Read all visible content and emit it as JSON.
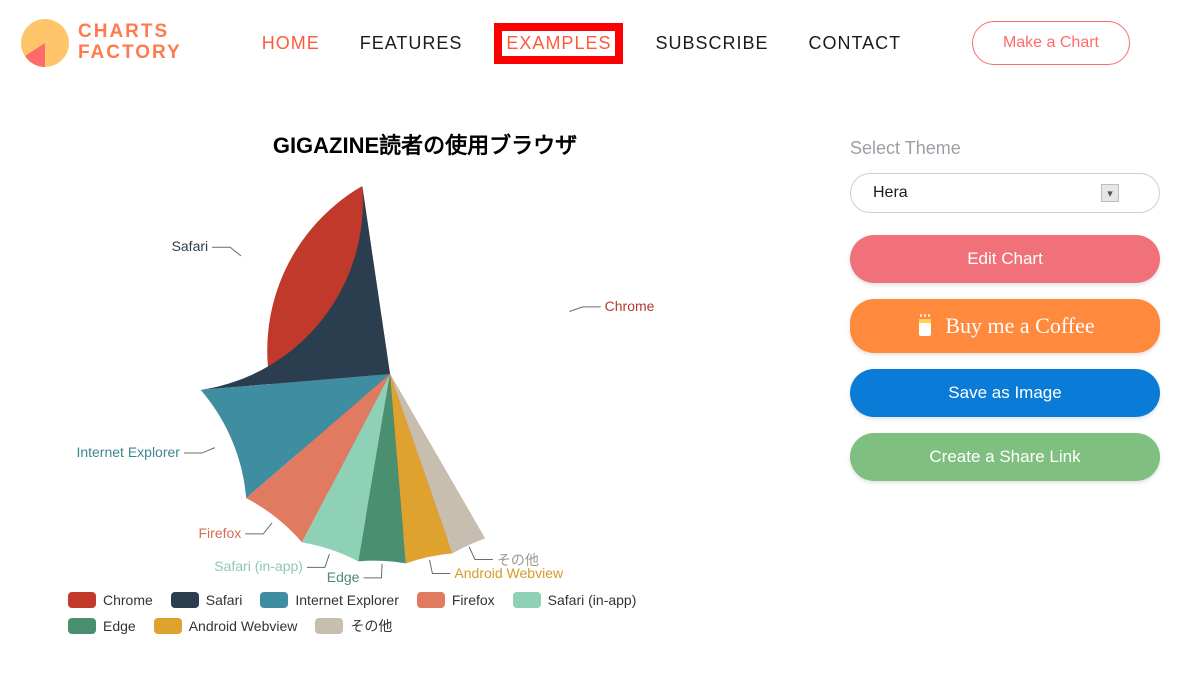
{
  "brand": {
    "line1": "CHARTS",
    "line2": "FACTORY",
    "mark_colors": {
      "disc": "#ffc56b",
      "wedge": "#ff6b6b"
    }
  },
  "nav": {
    "items": [
      {
        "label": "HOME",
        "state": "active"
      },
      {
        "label": "FEATURES",
        "state": "normal"
      },
      {
        "label": "EXAMPLES",
        "state": "highlighted"
      },
      {
        "label": "SUBSCRIBE",
        "state": "normal"
      },
      {
        "label": "CONTACT",
        "state": "normal"
      }
    ],
    "cta_label": "Make a Chart",
    "highlight_color": "#ff0000"
  },
  "chart": {
    "type": "pie",
    "title": "GIGAZINE読者の使用ブラウザ",
    "title_fontsize": 22,
    "background_color": "#ffffff",
    "radius": 190,
    "start_angle_deg": 60,
    "slices": [
      {
        "label": "Chrome",
        "value": 44,
        "color": "#c0392b",
        "label_color": "#b5392d"
      },
      {
        "label": "Safari",
        "value": 24,
        "color": "#2b3e50",
        "label_color": "#2b3e50"
      },
      {
        "label": "Internet Explorer",
        "value": 10,
        "color": "#3e8da0",
        "label_color": "#3e8693"
      },
      {
        "label": "Firefox",
        "value": 6,
        "color": "#e07b61",
        "label_color": "#d66f55"
      },
      {
        "label": "Safari (in-app)",
        "value": 5,
        "color": "#8fd1b7",
        "label_color": "#8fc9b1"
      },
      {
        "label": "Edge",
        "value": 4,
        "color": "#4a8f6f",
        "label_color": "#4a8f6f"
      },
      {
        "label": "Android Webview",
        "value": 4,
        "color": "#e0a22f",
        "label_color": "#d79a2a"
      },
      {
        "label": "その他",
        "value": 3,
        "color": "#c8beb0",
        "label_color": "#9e978b"
      }
    ],
    "leader_color": "#6b6b6b",
    "label_fontsize": 14
  },
  "side": {
    "select_label": "Select Theme",
    "theme_value": "Hera",
    "buttons": {
      "edit": "Edit Chart",
      "coffee": "Buy me a Coffee",
      "save": "Save as Image",
      "share": "Create a Share Link"
    },
    "colors": {
      "edit": "#f07179",
      "coffee": "#ff8a3d",
      "save": "#0a7bd6",
      "share": "#7fbf7f"
    }
  }
}
